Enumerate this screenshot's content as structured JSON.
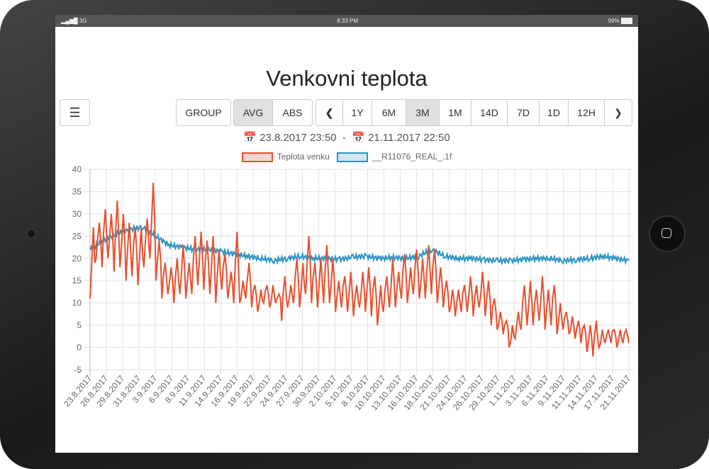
{
  "status": {
    "signal": "3G",
    "time": "8:33 PM",
    "battery": "99%"
  },
  "title": "Venkovni teplota",
  "toolbar": {
    "group": "GROUP",
    "avg": "AVG",
    "abs": "ABS",
    "ranges": [
      "1Y",
      "6M",
      "3M",
      "1M",
      "14D",
      "7D",
      "1D",
      "12H"
    ],
    "active_range": "3M",
    "active_mode": "AVG"
  },
  "dates": {
    "from": "23.8.2017 23:50",
    "sep": "-",
    "to": "21.11.2017 22:50"
  },
  "chart_data": {
    "type": "line",
    "ylim": [
      -5,
      40
    ],
    "yticks": [
      "40",
      "35",
      "30",
      "25",
      "20",
      "15",
      "10",
      "5",
      "0",
      "-5"
    ],
    "xticks": [
      "23.8.2017",
      "26.8.2017",
      "29.8.2017",
      "31.8.2017",
      "3.9.2017",
      "6.9.2017",
      "8.9.2017",
      "11.9.2017",
      "14.9.2017",
      "16.9.2017",
      "19.9.2017",
      "22.9.2017",
      "24.9.2017",
      "27.9.2017",
      "30.9.2017",
      "2.10.2017",
      "5.10.2017",
      "8.10.2017",
      "10.10.2017",
      "13.10.2017",
      "16.10.2017",
      "18.10.2017",
      "21.10.2017",
      "24.10.2017",
      "26.10.2017",
      "29.10.2017",
      "1.11.2017",
      "3.11.2017",
      "6.11.2017",
      "9.11.2017",
      "11.11.2017",
      "14.11.2017",
      "17.11.2017",
      "21.11.2017"
    ],
    "series": [
      {
        "name": "Teplota venku",
        "color": "#e8502e",
        "fill": "#f2d6d0",
        "daily_min_max": [
          [
            11,
            27
          ],
          [
            20,
            28
          ],
          [
            18,
            31
          ],
          [
            20,
            30
          ],
          [
            17,
            33
          ],
          [
            18,
            30
          ],
          [
            15,
            28
          ],
          [
            16,
            27
          ],
          [
            14,
            27
          ],
          [
            18,
            29
          ],
          [
            20,
            37
          ],
          [
            15,
            24
          ],
          [
            11,
            19
          ],
          [
            12,
            18
          ],
          [
            10,
            20
          ],
          [
            12,
            23
          ],
          [
            11,
            19
          ],
          [
            12,
            25
          ],
          [
            14,
            26
          ],
          [
            13,
            24
          ],
          [
            12,
            25
          ],
          [
            10,
            22
          ],
          [
            13,
            21
          ],
          [
            11,
            17
          ],
          [
            10,
            26
          ],
          [
            10,
            15
          ],
          [
            11,
            19
          ],
          [
            9,
            14
          ],
          [
            8,
            13
          ],
          [
            10,
            14
          ],
          [
            9,
            14
          ],
          [
            10,
            12
          ],
          [
            6,
            16
          ],
          [
            9,
            14
          ],
          [
            10,
            20
          ],
          [
            9,
            19
          ],
          [
            12,
            25
          ],
          [
            10,
            19
          ],
          [
            9,
            20
          ],
          [
            10,
            23
          ],
          [
            10,
            20
          ],
          [
            8,
            15
          ],
          [
            9,
            16
          ],
          [
            8,
            17
          ],
          [
            7,
            14
          ],
          [
            9,
            17
          ],
          [
            8,
            18
          ],
          [
            7,
            16
          ],
          [
            5,
            14
          ],
          [
            8,
            16
          ],
          [
            9,
            20
          ],
          [
            9,
            17
          ],
          [
            11,
            21
          ],
          [
            10,
            18
          ],
          [
            12,
            22
          ],
          [
            11,
            20
          ],
          [
            11,
            23
          ],
          [
            12,
            22
          ],
          [
            10,
            18
          ],
          [
            9,
            15
          ],
          [
            8,
            13
          ],
          [
            7,
            13
          ],
          [
            8,
            14
          ],
          [
            8,
            16
          ],
          [
            7,
            14
          ],
          [
            9,
            17
          ],
          [
            7,
            15
          ],
          [
            5,
            11
          ],
          [
            4,
            8
          ],
          [
            3,
            6
          ],
          [
            0,
            5
          ],
          [
            2,
            8
          ],
          [
            4,
            14
          ],
          [
            5,
            15
          ],
          [
            5,
            13
          ],
          [
            6,
            16
          ],
          [
            4,
            13
          ],
          [
            5,
            14
          ],
          [
            3,
            10
          ],
          [
            4,
            8
          ],
          [
            3,
            7
          ],
          [
            2,
            6
          ],
          [
            1,
            5
          ],
          [
            -1,
            5
          ],
          [
            -2,
            6
          ],
          [
            0,
            4
          ],
          [
            1,
            4
          ],
          [
            1,
            4
          ],
          [
            0,
            4
          ],
          [
            1,
            4
          ],
          [
            1,
            4
          ]
        ]
      },
      {
        "name": "__R11076_REAL_.1f",
        "color": "#2b93c5",
        "fill": "#d3e6ef",
        "values_every_3_days": [
          22,
          24,
          25.5,
          26.5,
          27,
          25,
          23,
          22.5,
          22,
          22,
          21.5,
          21,
          20.5,
          20,
          19.5,
          20,
          20.5,
          20,
          20,
          19.8,
          20.3,
          20.5,
          20,
          20.2,
          20,
          20.5,
          22,
          20.5,
          20,
          20,
          19.7,
          19.5,
          19.5,
          19.8,
          20,
          20,
          19.5,
          19.7,
          20,
          20.5,
          20,
          19.5
        ]
      }
    ]
  }
}
